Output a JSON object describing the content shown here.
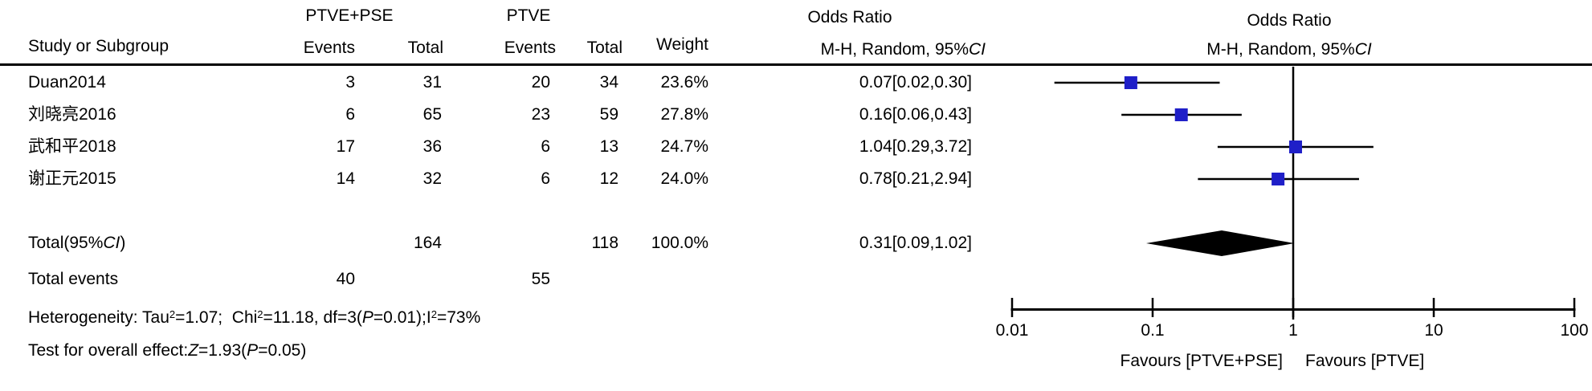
{
  "table": {
    "group_headers": {
      "experimental": "PTVE+PSE",
      "control": "PTVE",
      "or_column_title": "Odds Ratio",
      "or_plot_title": "Odds Ratio"
    },
    "columns": {
      "study": "Study or Subgroup",
      "events1": "Events",
      "total1": "Total",
      "events2": "Events",
      "total2": "Total",
      "weight": "Weight",
      "mh_pre": "M-H, Random, 95%",
      "mh_ci": "CI"
    },
    "rows": [
      {
        "study": "Duan2014",
        "e1": "3",
        "t1": "31",
        "e2": "20",
        "t2": "34",
        "weight": "23.6%",
        "or_text": "0.07[0.02,0.30]"
      },
      {
        "study": "刘晓亮2016",
        "e1": "6",
        "t1": "65",
        "e2": "23",
        "t2": "59",
        "weight": "27.8%",
        "or_text": "0.16[0.06,0.43]"
      },
      {
        "study": "武和平2018",
        "e1": "17",
        "t1": "36",
        "e2": "6",
        "t2": "13",
        "weight": "24.7%",
        "or_text": "1.04[0.29,3.72]"
      },
      {
        "study": "谢正元2015",
        "e1": "14",
        "t1": "32",
        "e2": "6",
        "t2": "12",
        "weight": "24.0%",
        "or_text": "0.78[0.21,2.94]"
      }
    ],
    "total_row": {
      "label_pre": "Total(95%",
      "label_ci": "CI",
      "label_post": ")",
      "t1": "164",
      "t2": "118",
      "weight": "100.0%",
      "or_text": "0.31[0.09,1.02]"
    },
    "total_events": {
      "label": "Total events",
      "e1": "40",
      "e2": "55"
    }
  },
  "stats": {
    "heterogeneity": {
      "t1": "Heterogeneity: Tau",
      "s1": "2",
      "t2": "=1.07;  Chi",
      "s2": "2",
      "t3": "=11.18, df=3(",
      "p1": "P",
      "t4": "=0.01);I",
      "s3": "2",
      "t5": "=73%"
    },
    "overall": {
      "t1": "Test for overall effect:",
      "z": "Z",
      "t2": "=1.93(",
      "p": "P",
      "t3": "=0.05)"
    }
  },
  "chart_data": {
    "type": "forest",
    "title": "Odds Ratio",
    "subtitle": "M-H, Random, 95%CI",
    "x_scale": "log",
    "x_range": [
      0.01,
      100
    ],
    "x_ticks": [
      0.01,
      0.1,
      1,
      10,
      100
    ],
    "x_tick_labels": [
      "0.01",
      "0.1",
      "1",
      "10",
      "100"
    ],
    "null_line": 1,
    "marker_color": "#1f1fc8",
    "line_color": "#000000",
    "studies": [
      {
        "name": "Duan2014",
        "or": 0.07,
        "ci_low": 0.02,
        "ci_high": 0.3,
        "weight_pct": 23.6
      },
      {
        "name": "刘晓亮2016",
        "or": 0.16,
        "ci_low": 0.06,
        "ci_high": 0.43,
        "weight_pct": 27.8
      },
      {
        "name": "武和平2018",
        "or": 1.04,
        "ci_low": 0.29,
        "ci_high": 3.72,
        "weight_pct": 24.7
      },
      {
        "name": "谢正元2015",
        "or": 0.78,
        "ci_low": 0.21,
        "ci_high": 2.94,
        "weight_pct": 24.0
      }
    ],
    "total": {
      "or": 0.31,
      "ci_low": 0.09,
      "ci_high": 1.02
    },
    "favours_left": "Favours [PTVE+PSE]",
    "favours_right": "Favours [PTVE]"
  }
}
